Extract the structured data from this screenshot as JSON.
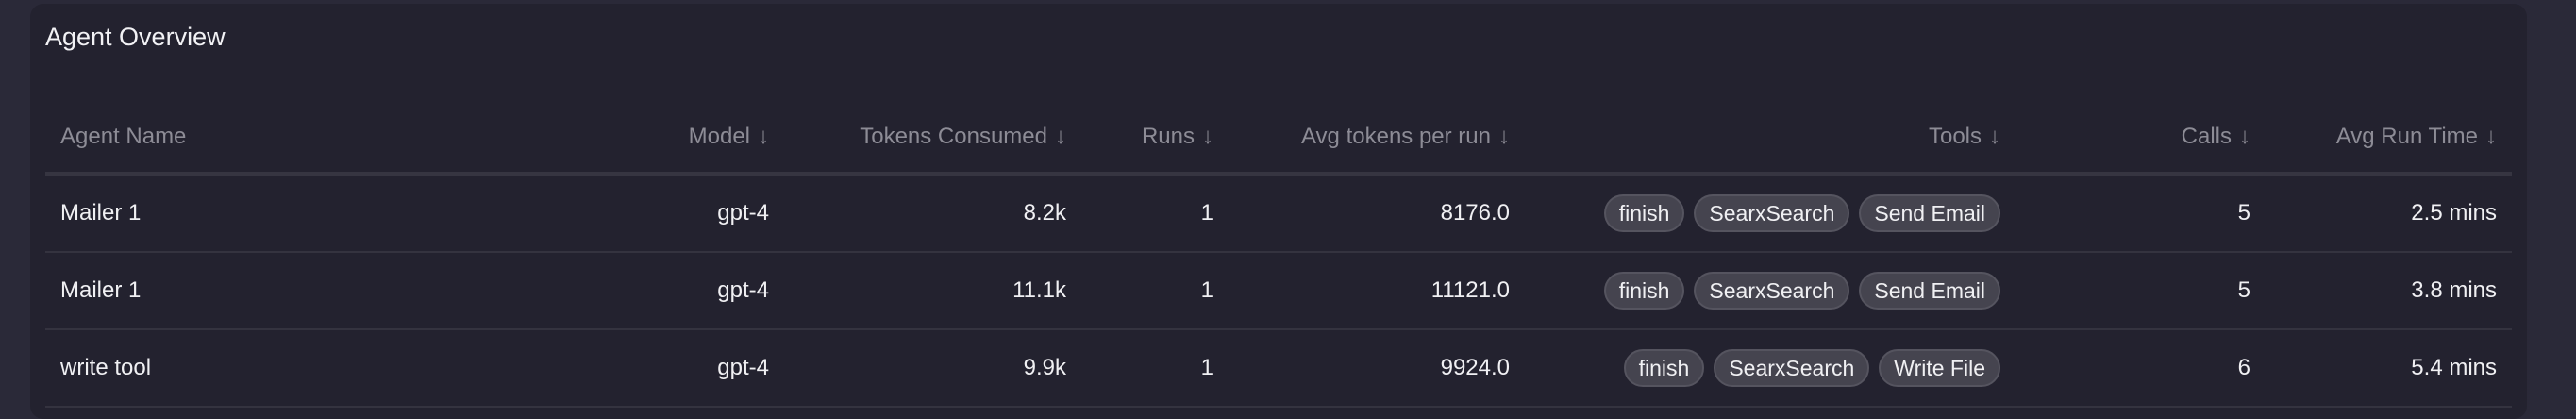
{
  "title": "Agent Overview",
  "headers": [
    {
      "label": "Agent Name",
      "sort": ""
    },
    {
      "label": "Model",
      "sort": "↓"
    },
    {
      "label": "Tokens Consumed",
      "sort": "↓"
    },
    {
      "label": "Runs",
      "sort": "↓"
    },
    {
      "label": "Avg tokens per run",
      "sort": "↓"
    },
    {
      "label": "Tools",
      "sort": "↓"
    },
    {
      "label": "Calls",
      "sort": "↓"
    },
    {
      "label": "Avg Run Time",
      "sort": "↓"
    }
  ],
  "rows": [
    {
      "name": "Mailer 1",
      "model": "gpt-4",
      "tokens": "8.2k",
      "runs": "1",
      "avg_tokens": "8176.0",
      "tools": [
        "finish",
        "SearxSearch",
        "Send Email"
      ],
      "calls": "5",
      "avg_time": "2.5 mins"
    },
    {
      "name": "Mailer 1",
      "model": "gpt-4",
      "tokens": "11.1k",
      "runs": "1",
      "avg_tokens": "11121.0",
      "tools": [
        "finish",
        "SearxSearch",
        "Send Email"
      ],
      "calls": "5",
      "avg_time": "3.8 mins"
    },
    {
      "name": "write tool",
      "model": "gpt-4",
      "tokens": "9.9k",
      "runs": "1",
      "avg_tokens": "9924.0",
      "tools": [
        "finish",
        "SearxSearch",
        "Write File"
      ],
      "calls": "6",
      "avg_time": "5.4 mins"
    }
  ]
}
